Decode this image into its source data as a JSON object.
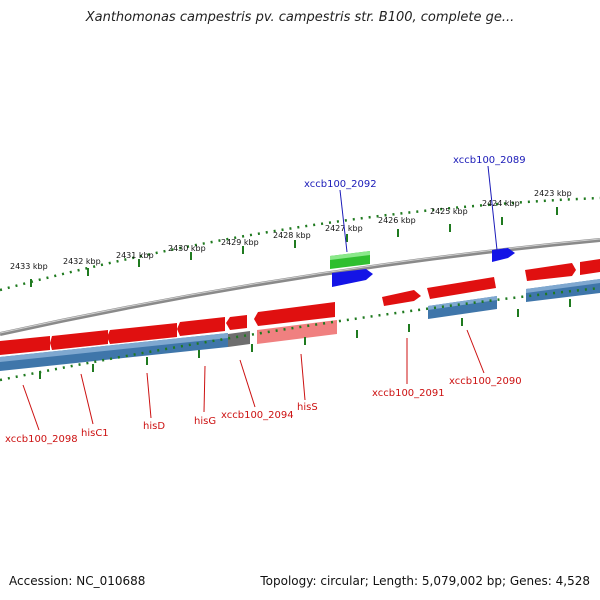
{
  "title": "Xanthomonas campestris pv. campestris str. B100, complete ge...",
  "footer": {
    "accession": "Accession: NC_010688",
    "summary": "Topology: circular; Length: 5,079,002 bp; Genes: 4,528"
  },
  "colors": {
    "backbone": "#8a8a8a",
    "tick": "#1f7a1f",
    "cds": "#e01010",
    "cds_dark": "#9c0000",
    "gene": "#3f76aa",
    "gene_dark": "#234a70",
    "pseudo": "#6e6e6e",
    "label_red": "#cc1111",
    "label_blue": "#1a1ab8",
    "rna": "#2fbf2f",
    "blue_feature": "#1414e6",
    "pink": "#f08080"
  },
  "kbp_labels": [
    "2433 kbp",
    "2432 kbp",
    "2431 kbp",
    "2430 kbp",
    "2429 kbp",
    "2428 kbp",
    "2427 kbp",
    "2426 kbp",
    "2425 kbp",
    "2424 kbp",
    "2423 kbp"
  ],
  "gene_labels": [
    {
      "text": "xccb100_2098",
      "color": "red"
    },
    {
      "text": "hisC1",
      "color": "red"
    },
    {
      "text": "hisD",
      "color": "red"
    },
    {
      "text": "hisG",
      "color": "red"
    },
    {
      "text": "xccb100_2094",
      "color": "red"
    },
    {
      "text": "hisS",
      "color": "red"
    },
    {
      "text": "xccb100_2091",
      "color": "red"
    },
    {
      "text": "xccb100_2090",
      "color": "red"
    },
    {
      "text": "xccb100_2092",
      "color": "blue"
    },
    {
      "text": "xccb100_2089",
      "color": "blue"
    }
  ]
}
